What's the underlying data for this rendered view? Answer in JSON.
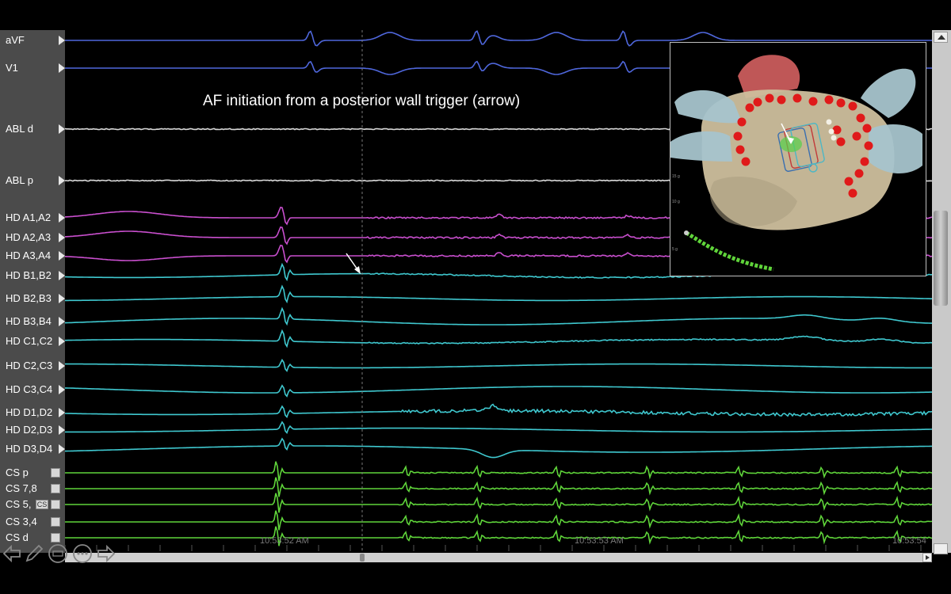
{
  "annotation": "AF initiation from a posterior wall trigger  (arrow)",
  "channels": [
    {
      "label": "aVF",
      "color": "#4f67dc",
      "control": "arrow"
    },
    {
      "label": "V1",
      "color": "#4f67dc",
      "control": "arrow"
    },
    {
      "label": "ABL d",
      "color": "#d8d8d8",
      "control": "arrow"
    },
    {
      "label": "ABL p",
      "color": "#d8d8d8",
      "control": "arrow"
    },
    {
      "label": "HD A1,A2",
      "color": "#c94fce",
      "control": "arrow"
    },
    {
      "label": "HD A2,A3",
      "color": "#c94fce",
      "control": "arrow"
    },
    {
      "label": "HD A3,A4",
      "color": "#c94fce",
      "control": "arrow"
    },
    {
      "label": "HD B1,B2",
      "color": "#3fc8cf",
      "control": "arrow"
    },
    {
      "label": "HD B2,B3",
      "color": "#3fc8cf",
      "control": "arrow"
    },
    {
      "label": "HD B3,B4",
      "color": "#3fc8cf",
      "control": "arrow"
    },
    {
      "label": "HD C1,C2",
      "color": "#3fc8cf",
      "control": "arrow"
    },
    {
      "label": "HD C2,C3",
      "color": "#3fc8cf",
      "control": "arrow"
    },
    {
      "label": "HD C3,C4",
      "color": "#3fc8cf",
      "control": "arrow"
    },
    {
      "label": "HD D1,D2",
      "color": "#3fc8cf",
      "control": "arrow"
    },
    {
      "label": "HD D2,D3",
      "color": "#3fc8cf",
      "control": "arrow"
    },
    {
      "label": "HD D3,D4",
      "color": "#3fc8cf",
      "control": "arrow"
    },
    {
      "label": "CS p",
      "color": "#5fd43a",
      "control": "box"
    },
    {
      "label": "CS 7,8",
      "color": "#5fd43a",
      "control": "box"
    },
    {
      "label": "CS 5,",
      "color": "#5fd43a",
      "control": "box",
      "extra": "CS"
    },
    {
      "label": "CS 3,4",
      "color": "#5fd43a",
      "control": "box"
    },
    {
      "label": "CS d",
      "color": "#5fd43a",
      "control": "box"
    }
  ],
  "time_labels": [
    "10:53:52 AM",
    "10:53:53 AM",
    "10:53:54"
  ],
  "toolbar": {
    "buttons": [
      "back-arrow-icon",
      "pen-icon",
      "keyboard-icon",
      "more-icon",
      "forward-arrow-icon"
    ]
  },
  "map": {
    "scale_labels": [
      "15 g",
      "10 g",
      "5 g"
    ]
  },
  "colors": {
    "ecg": "#4f67dc",
    "abl": "#d8d8d8",
    "hd_a": "#c94fce",
    "hd_bcd": "#3fc8cf",
    "cs": "#5fd43a",
    "panel": "#4b4b4b",
    "lesion": "#e01a1a",
    "chamber": "#cfc1a0"
  }
}
